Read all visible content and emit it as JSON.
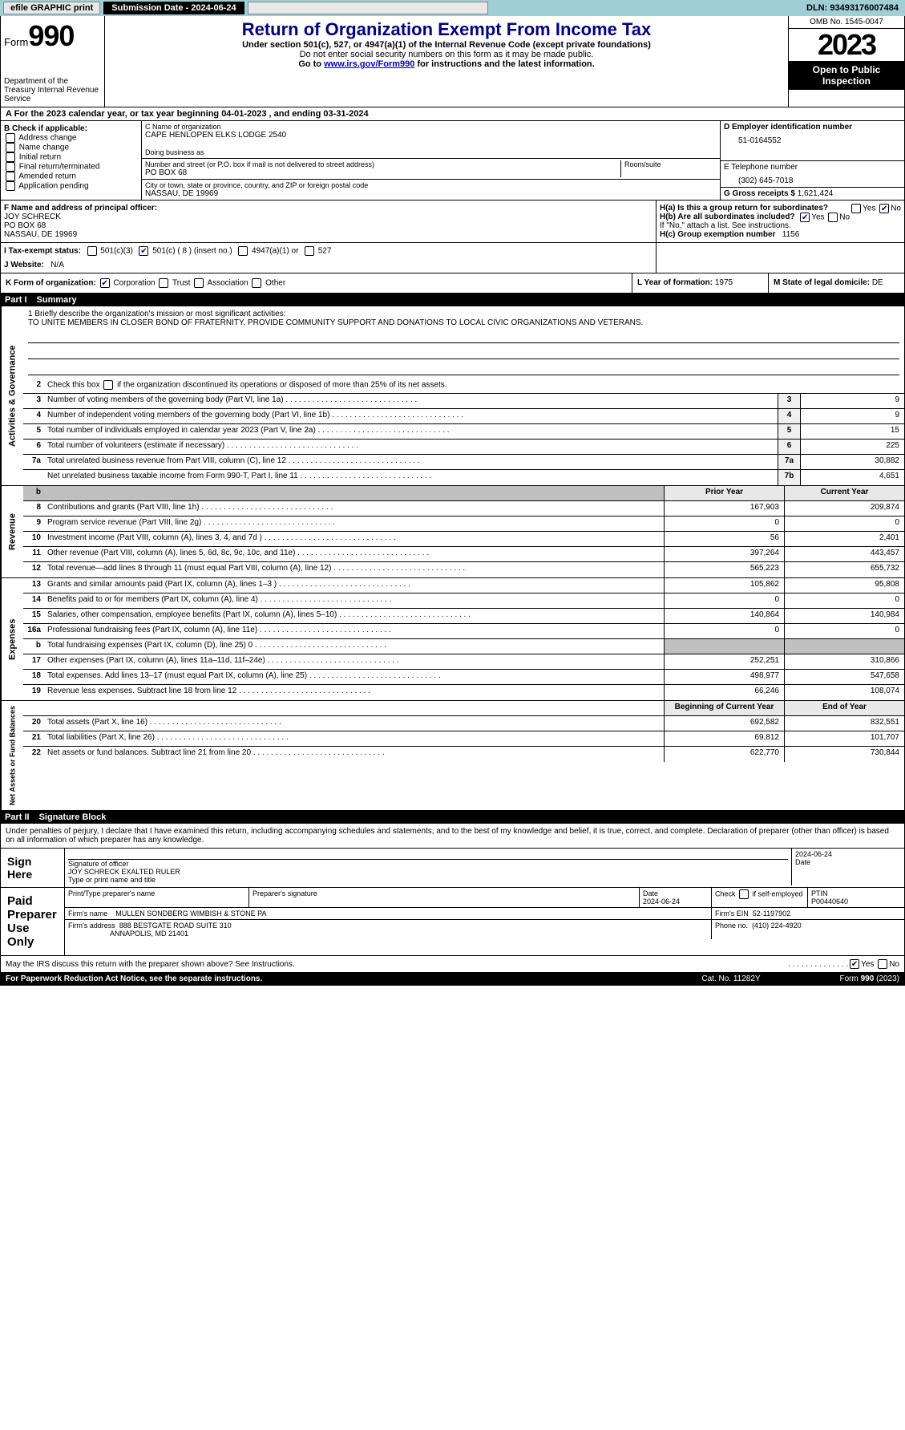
{
  "topbar": {
    "efile": "efile GRAPHIC print",
    "submission": "Submission Date - 2024-06-24",
    "dln": "DLN: 93493176007484"
  },
  "header": {
    "form_label": "Form",
    "form_num": "990",
    "dept": "Department of the Treasury\nInternal Revenue Service",
    "title": "Return of Organization Exempt From Income Tax",
    "sub1": "Under section 501(c), 527, or 4947(a)(1) of the Internal Revenue Code (except private foundations)",
    "sub2": "Do not enter social security numbers on this form as it may be made public.",
    "goto_prefix": "Go to ",
    "goto_link": "www.irs.gov/Form990",
    "goto_suffix": " for instructions and the latest information.",
    "omb": "OMB No. 1545-0047",
    "year": "2023",
    "open": "Open to Public Inspection"
  },
  "row_a": "A  For the 2023 calendar year, or tax year beginning 04-01-2023    , and ending 03-31-2024",
  "col_b": {
    "label": "B Check if applicable:",
    "opts": [
      "Address change",
      "Name change",
      "Initial return",
      "Final return/terminated",
      "Amended return",
      "Application pending"
    ]
  },
  "col_c": {
    "name_lbl": "C Name of organization",
    "name": "CAPE HENLOPEN ELKS LODGE 2540",
    "dba_lbl": "Doing business as",
    "dba": "",
    "addr_lbl": "Number and street (or P.O. box if mail is not delivered to street address)",
    "room_lbl": "Room/suite",
    "addr": "PO BOX 68",
    "city_lbl": "City or town, state or province, country, and ZIP or foreign postal code",
    "city": "NASSAU, DE  19969"
  },
  "col_de": {
    "d_lbl": "D Employer identification number",
    "d_val": "51-0164552",
    "e_lbl": "E Telephone number",
    "e_val": "(302) 645-7018",
    "g_lbl": "G Gross receipts $",
    "g_val": "1,621,424"
  },
  "row_f": {
    "lbl": "F  Name and address of principal officer:",
    "name": "JOY SCHRECK",
    "addr1": "PO BOX 68",
    "addr2": "NASSAU, DE  19969"
  },
  "row_h": {
    "ha": "H(a)  Is this a group return for subordinates?",
    "hb": "H(b)  Are all subordinates included?",
    "hb_note": "If \"No,\" attach a list. See instructions.",
    "hc": "H(c)  Group exemption number",
    "hc_val": "1156",
    "yes": "Yes",
    "no": "No"
  },
  "row_i": {
    "lbl": "I   Tax-exempt status:",
    "o1": "501(c)(3)",
    "o2": "501(c) ( 8 ) (insert no.)",
    "o3": "4947(a)(1) or",
    "o4": "527"
  },
  "row_j": {
    "lbl": "J   Website:",
    "val": "N/A"
  },
  "row_k": {
    "lbl": "K Form of organization:",
    "o1": "Corporation",
    "o2": "Trust",
    "o3": "Association",
    "o4": "Other"
  },
  "row_l": {
    "lbl": "L Year of formation:",
    "val": "1975"
  },
  "row_m": {
    "lbl": "M State of legal domicile:",
    "val": "DE"
  },
  "part1": {
    "num": "Part I",
    "title": "Summary"
  },
  "mission": {
    "lbl": "1   Briefly describe the organization's mission or most significant activities:",
    "text": "TO UNITE MEMBERS IN CLOSER BOND OF FRATERNITY, PROVIDE COMMUNITY SUPPORT AND DONATIONS TO LOCAL CIVIC ORGANIZATIONS AND VETERANS."
  },
  "line2": "Check this box       if the organization discontinued its operations or disposed of more than 25% of its net assets.",
  "gov_lines": [
    {
      "n": "3",
      "d": "Number of voting members of the governing body (Part VI, line 1a)",
      "box": "3",
      "v": "9"
    },
    {
      "n": "4",
      "d": "Number of independent voting members of the governing body (Part VI, line 1b)",
      "box": "4",
      "v": "9"
    },
    {
      "n": "5",
      "d": "Total number of individuals employed in calendar year 2023 (Part V, line 2a)",
      "box": "5",
      "v": "15"
    },
    {
      "n": "6",
      "d": "Total number of volunteers (estimate if necessary)",
      "box": "6",
      "v": "225"
    },
    {
      "n": "7a",
      "d": "Total unrelated business revenue from Part VIII, column (C), line 12",
      "box": "7a",
      "v": "30,882"
    },
    {
      "n": "",
      "d": "Net unrelated business taxable income from Form 990-T, Part I, line 11",
      "box": "7b",
      "v": "4,651"
    }
  ],
  "rev_hdr": {
    "prior": "Prior Year",
    "curr": "Current Year"
  },
  "rev_lines": [
    {
      "n": "8",
      "d": "Contributions and grants (Part VIII, line 1h)",
      "p": "167,903",
      "c": "209,874"
    },
    {
      "n": "9",
      "d": "Program service revenue (Part VIII, line 2g)",
      "p": "0",
      "c": "0"
    },
    {
      "n": "10",
      "d": "Investment income (Part VIII, column (A), lines 3, 4, and 7d )",
      "p": "56",
      "c": "2,401"
    },
    {
      "n": "11",
      "d": "Other revenue (Part VIII, column (A), lines 5, 6d, 8c, 9c, 10c, and 11e)",
      "p": "397,264",
      "c": "443,457"
    },
    {
      "n": "12",
      "d": "Total revenue—add lines 8 through 11 (must equal Part VIII, column (A), line 12)",
      "p": "565,223",
      "c": "655,732"
    }
  ],
  "exp_lines": [
    {
      "n": "13",
      "d": "Grants and similar amounts paid (Part IX, column (A), lines 1–3 )",
      "p": "105,862",
      "c": "95,808"
    },
    {
      "n": "14",
      "d": "Benefits paid to or for members (Part IX, column (A), line 4)",
      "p": "0",
      "c": "0"
    },
    {
      "n": "15",
      "d": "Salaries, other compensation, employee benefits (Part IX, column (A), lines 5–10)",
      "p": "140,864",
      "c": "140,984"
    },
    {
      "n": "16a",
      "d": "Professional fundraising fees (Part IX, column (A), line 11e)",
      "p": "0",
      "c": "0"
    },
    {
      "n": "b",
      "d": "Total fundraising expenses (Part IX, column (D), line 25) 0",
      "p": "",
      "c": "",
      "grey": true
    },
    {
      "n": "17",
      "d": "Other expenses (Part IX, column (A), lines 11a–11d, 11f–24e)",
      "p": "252,251",
      "c": "310,866"
    },
    {
      "n": "18",
      "d": "Total expenses. Add lines 13–17 (must equal Part IX, column (A), line 25)",
      "p": "498,977",
      "c": "547,658"
    },
    {
      "n": "19",
      "d": "Revenue less expenses. Subtract line 18 from line 12",
      "p": "66,246",
      "c": "108,074"
    }
  ],
  "na_hdr": {
    "beg": "Beginning of Current Year",
    "end": "End of Year"
  },
  "na_lines": [
    {
      "n": "20",
      "d": "Total assets (Part X, line 16)",
      "p": "692,582",
      "c": "832,551"
    },
    {
      "n": "21",
      "d": "Total liabilities (Part X, line 26)",
      "p": "69,812",
      "c": "101,707"
    },
    {
      "n": "22",
      "d": "Net assets or fund balances. Subtract line 21 from line 20",
      "p": "622,770",
      "c": "730,844"
    }
  ],
  "vtabs": {
    "gov": "Activities & Governance",
    "rev": "Revenue",
    "exp": "Expenses",
    "na": "Net Assets or Fund Balances"
  },
  "part2": {
    "num": "Part II",
    "title": "Signature Block"
  },
  "penalty": "Under penalties of perjury, I declare that I have examined this return, including accompanying schedules and statements, and to the best of my knowledge and belief, it is true, correct, and complete. Declaration of preparer (other than officer) is based on all information of which preparer has any knowledge.",
  "sign": {
    "here": "Sign Here",
    "sig_lbl": "Signature of officer",
    "date_lbl": "Date",
    "date": "2024-06-24",
    "name": "JOY SCHRECK  EXALTED RULER",
    "type_lbl": "Type or print name and title"
  },
  "paid": {
    "here": "Paid Preparer Use Only",
    "col1": "Print/Type preparer's name",
    "col2": "Preparer's signature",
    "col3": "Date",
    "col3v": "2024-06-24",
    "col4": "Check        if self-employed",
    "col5": "PTIN",
    "col5v": "P00440640",
    "firm_lbl": "Firm's name",
    "firm": "MULLEN SONDBERG WIMBISH & STONE PA",
    "ein_lbl": "Firm's EIN",
    "ein": "52-1197902",
    "addr_lbl": "Firm's address",
    "addr": "888 BESTGATE ROAD SUITE 310",
    "addr2": "ANNAPOLIS, MD  21401",
    "phone_lbl": "Phone no.",
    "phone": "(410) 224-4920"
  },
  "discuss": "May the IRS discuss this return with the preparer shown above? See Instructions.",
  "footer": {
    "f1": "For Paperwork Reduction Act Notice, see the separate instructions.",
    "f2": "Cat. No. 11282Y",
    "f3": "Form 990 (2023)"
  }
}
